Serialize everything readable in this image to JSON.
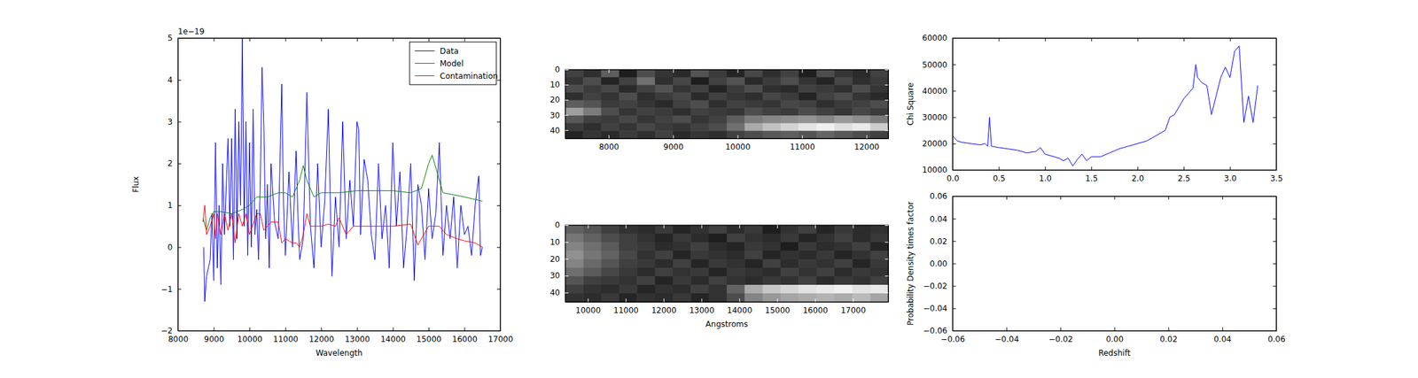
{
  "chart_data": [
    {
      "type": "line",
      "xlabel": "Wavelength",
      "ylabel": "Flux",
      "y_offset_label": "1e−19",
      "legend": "upper right",
      "xlim": [
        8000,
        17000
      ],
      "ylim": [
        -2,
        5
      ],
      "xticks": [
        8000,
        9000,
        10000,
        11000,
        12000,
        13000,
        14000,
        15000,
        16000,
        17000
      ],
      "yticks": [
        {
          "value": -2,
          "label": "−2"
        },
        {
          "value": -1,
          "label": "−1"
        },
        0,
        1,
        2,
        3,
        4,
        5
      ],
      "series": [
        {
          "name": "Data",
          "color": "#0000ff",
          "x": [
            8720,
            8750,
            8800,
            8900,
            8950,
            9000,
            9050,
            9100,
            9150,
            9200,
            9250,
            9300,
            9400,
            9450,
            9500,
            9550,
            9600,
            9650,
            9700,
            9750,
            9800,
            9850,
            9900,
            9950,
            10000,
            10050,
            10100,
            10150,
            10200,
            10250,
            10300,
            10350,
            10400,
            10450,
            10500,
            10550,
            10600,
            10700,
            10800,
            10900,
            10950,
            11000,
            11100,
            11200,
            11300,
            11350,
            11400,
            11500,
            11600,
            11700,
            11800,
            11900,
            12000,
            12100,
            12200,
            12300,
            12400,
            12500,
            12600,
            12700,
            12800,
            12900,
            13000,
            13050,
            13100,
            13200,
            13300,
            13400,
            13500,
            13600,
            13700,
            13800,
            13900,
            14000,
            14100,
            14200,
            14300,
            14400,
            14500,
            14600,
            14700,
            14800,
            14900,
            15000,
            15100,
            15200,
            15300,
            15400,
            15500,
            15600,
            15700,
            15800,
            15900,
            16000,
            16100,
            16200,
            16300,
            16400,
            16450,
            16500
          ],
          "values": [
            0.0,
            -1.3,
            -0.7,
            -0.3,
            0.8,
            -0.8,
            2.5,
            -0.5,
            1.0,
            -0.9,
            2.0,
            0.3,
            2.6,
            0.5,
            2.6,
            -0.3,
            3.3,
            0.2,
            3.0,
            1.0,
            5.0,
            0.5,
            3.0,
            -0.2,
            2.5,
            0.0,
            3.3,
            0.3,
            0.9,
            -0.3,
            1.5,
            4.3,
            2.9,
            0.2,
            1.5,
            -0.5,
            2.0,
            0.6,
            0.2,
            3.9,
            1.0,
            -0.2,
            1.8,
            0.0,
            2.3,
            0.8,
            -0.3,
            0.2,
            3.7,
            0.5,
            -0.5,
            2.0,
            0.0,
            1.1,
            3.3,
            -0.7,
            1.2,
            0.0,
            3.0,
            0.2,
            1.6,
            0.5,
            3.0,
            2.8,
            0.3,
            2.1,
            1.6,
            0.3,
            -0.3,
            2.0,
            0.2,
            1.0,
            -0.5,
            2.5,
            0.5,
            1.8,
            -0.5,
            0.5,
            2.0,
            -0.8,
            1.5,
            1.0,
            -0.3,
            1.4,
            0.2,
            0.8,
            2.5,
            -0.2,
            1.0,
            0.2,
            1.2,
            -0.5,
            1.0,
            0.3,
            0.5,
            -0.2,
            1.0,
            1.7,
            -0.2,
            0.0
          ]
        },
        {
          "name": "Model",
          "color": "#008000",
          "x": [
            8700,
            8800,
            8900,
            9000,
            9200,
            9500,
            9800,
            10000,
            10100,
            10200,
            10500,
            10800,
            11000,
            11200,
            11400,
            11500,
            11600,
            11800,
            12000,
            12500,
            13000,
            13500,
            14000,
            14500,
            14800,
            15000,
            15100,
            15200,
            15400,
            15700,
            16000,
            16500
          ],
          "values": [
            0.7,
            0.4,
            0.7,
            0.85,
            0.85,
            0.8,
            0.9,
            1.0,
            1.1,
            1.2,
            1.2,
            1.3,
            1.3,
            1.2,
            1.6,
            1.95,
            1.6,
            1.2,
            1.3,
            1.3,
            1.35,
            1.35,
            1.35,
            1.3,
            1.4,
            2.0,
            2.2,
            1.9,
            1.3,
            1.25,
            1.2,
            1.1
          ]
        },
        {
          "name": "Contamination",
          "color": "#ff0000",
          "x": [
            8700,
            8750,
            8800,
            8900,
            9000,
            9050,
            9100,
            9200,
            9300,
            9400,
            9500,
            9600,
            9700,
            9800,
            9900,
            10000,
            10200,
            10300,
            10400,
            10600,
            10800,
            10900,
            11000,
            11200,
            11300,
            11400,
            11500,
            11600,
            11700,
            12000,
            12200,
            12400,
            12500,
            12700,
            12900,
            13100,
            13500,
            14000,
            14500,
            14700,
            15000,
            15300,
            15500,
            15800,
            16000,
            16300,
            16500
          ],
          "values": [
            0.6,
            1.0,
            0.3,
            0.5,
            0.8,
            0.2,
            0.8,
            0.3,
            0.8,
            0.4,
            0.8,
            0.1,
            0.8,
            0.5,
            0.8,
            0.3,
            0.8,
            0.8,
            0.4,
            0.6,
            0.6,
            0.1,
            0.2,
            0.1,
            0.1,
            0.0,
            0.3,
            0.8,
            0.5,
            0.5,
            0.55,
            0.5,
            0.7,
            0.3,
            0.5,
            0.5,
            0.5,
            0.5,
            0.55,
            0.05,
            0.5,
            0.5,
            0.3,
            0.2,
            0.15,
            0.1,
            0.0
          ]
        }
      ]
    },
    {
      "type": "heatmap",
      "xlim": [
        7326,
        12337
      ],
      "ylim": [
        0,
        45.5
      ],
      "xticks": [
        8000,
        9000,
        10000,
        11000,
        12000
      ],
      "yticks": [
        0,
        10,
        20,
        30,
        40
      ],
      "z": [
        [
          0.5,
          0.47,
          0.55,
          0.44,
          0.52,
          0.48,
          0.46,
          0.53,
          0.49,
          0.45,
          0.51,
          0.47,
          0.5,
          0.44,
          0.52,
          0.48,
          0.46,
          0.5
        ],
        [
          0.48,
          0.52,
          0.45,
          0.5,
          0.58,
          0.47,
          0.51,
          0.44,
          0.5,
          0.53,
          0.46,
          0.49,
          0.52,
          0.48,
          0.45,
          0.51,
          0.47,
          0.49
        ],
        [
          0.52,
          0.49,
          0.51,
          0.46,
          0.5,
          0.53,
          0.48,
          0.5,
          0.45,
          0.49,
          0.52,
          0.47,
          0.46,
          0.5,
          0.49,
          0.47,
          0.52,
          0.48
        ],
        [
          0.47,
          0.5,
          0.48,
          0.52,
          0.47,
          0.49,
          0.51,
          0.46,
          0.5,
          0.48,
          0.47,
          0.51,
          0.49,
          0.45,
          0.5,
          0.52,
          0.48,
          0.46
        ],
        [
          0.55,
          0.53,
          0.49,
          0.5,
          0.48,
          0.46,
          0.5,
          0.52,
          0.47,
          0.5,
          0.49,
          0.48,
          0.51,
          0.5,
          0.47,
          0.49,
          0.5,
          0.52
        ],
        [
          0.66,
          0.6,
          0.52,
          0.48,
          0.5,
          0.49,
          0.47,
          0.5,
          0.49,
          0.48,
          0.52,
          0.5,
          0.49,
          0.52,
          0.5,
          0.48,
          0.51,
          0.49
        ],
        [
          0.54,
          0.5,
          0.49,
          0.51,
          0.48,
          0.5,
          0.52,
          0.48,
          0.5,
          0.55,
          0.6,
          0.62,
          0.63,
          0.64,
          0.62,
          0.65,
          0.63,
          0.6
        ],
        [
          0.49,
          0.47,
          0.5,
          0.48,
          0.51,
          0.49,
          0.48,
          0.5,
          0.52,
          0.58,
          0.68,
          0.72,
          0.75,
          0.78,
          0.8,
          0.77,
          0.79,
          0.74
        ],
        [
          0.45,
          0.48,
          0.46,
          0.49,
          0.47,
          0.5,
          0.46,
          0.48,
          0.47,
          0.5,
          0.52,
          0.54,
          0.55,
          0.53,
          0.56,
          0.54,
          0.52,
          0.5
        ]
      ]
    },
    {
      "type": "heatmap",
      "xlabel": "Angstroms",
      "xlim": [
        9403,
        17932
      ],
      "ylim": [
        0,
        45.5
      ],
      "xticks": [
        10000,
        11000,
        12000,
        13000,
        14000,
        15000,
        16000,
        17000
      ],
      "yticks": [
        0,
        10,
        20,
        30,
        40
      ],
      "z": [
        [
          0.55,
          0.53,
          0.5,
          0.48,
          0.47,
          0.49,
          0.46,
          0.48,
          0.5,
          0.47,
          0.49,
          0.45,
          0.48,
          0.5,
          0.46,
          0.49,
          0.47,
          0.48
        ],
        [
          0.58,
          0.55,
          0.52,
          0.5,
          0.48,
          0.46,
          0.49,
          0.47,
          0.45,
          0.5,
          0.48,
          0.47,
          0.49,
          0.46,
          0.48,
          0.5,
          0.47,
          0.49
        ],
        [
          0.6,
          0.57,
          0.54,
          0.5,
          0.49,
          0.47,
          0.48,
          0.5,
          0.47,
          0.46,
          0.49,
          0.48,
          0.45,
          0.49,
          0.47,
          0.48,
          0.5,
          0.46
        ],
        [
          0.62,
          0.58,
          0.55,
          0.51,
          0.48,
          0.5,
          0.46,
          0.49,
          0.48,
          0.47,
          0.5,
          0.46,
          0.48,
          0.47,
          0.49,
          0.46,
          0.48,
          0.5
        ],
        [
          0.6,
          0.56,
          0.53,
          0.5,
          0.49,
          0.47,
          0.5,
          0.46,
          0.49,
          0.48,
          0.46,
          0.5,
          0.47,
          0.49,
          0.48,
          0.5,
          0.46,
          0.49
        ],
        [
          0.57,
          0.54,
          0.51,
          0.49,
          0.47,
          0.5,
          0.48,
          0.49,
          0.46,
          0.49,
          0.48,
          0.47,
          0.5,
          0.48,
          0.5,
          0.47,
          0.49,
          0.48
        ],
        [
          0.53,
          0.5,
          0.49,
          0.48,
          0.5,
          0.46,
          0.49,
          0.47,
          0.5,
          0.48,
          0.47,
          0.49,
          0.48,
          0.5,
          0.47,
          0.49,
          0.48,
          0.5
        ],
        [
          0.5,
          0.48,
          0.47,
          0.49,
          0.46,
          0.48,
          0.47,
          0.5,
          0.48,
          0.55,
          0.66,
          0.7,
          0.72,
          0.74,
          0.75,
          0.76,
          0.74,
          0.75
        ],
        [
          0.48,
          0.47,
          0.49,
          0.46,
          0.48,
          0.47,
          0.49,
          0.46,
          0.48,
          0.52,
          0.6,
          0.63,
          0.65,
          0.66,
          0.67,
          0.66,
          0.68,
          0.65
        ]
      ]
    },
    {
      "type": "line",
      "ylabel": "Chi Square",
      "xlim": [
        0,
        3.5
      ],
      "ylim": [
        10000,
        60000
      ],
      "xticks": [
        {
          "value": 0,
          "label": "0.0"
        },
        {
          "value": 0.5,
          "label": "0.5"
        },
        {
          "value": 1,
          "label": "1.0"
        },
        {
          "value": 1.5,
          "label": "1.5"
        },
        {
          "value": 2,
          "label": "2.0"
        },
        {
          "value": 2.5,
          "label": "2.5"
        },
        {
          "value": 3,
          "label": "3.0"
        },
        {
          "value": 3.5,
          "label": "3.5"
        }
      ],
      "yticks": [
        10000,
        20000,
        30000,
        40000,
        50000,
        60000
      ],
      "series": [
        {
          "color": "#0000ff",
          "x": [
            0.0,
            0.05,
            0.1,
            0.2,
            0.3,
            0.35,
            0.38,
            0.4,
            0.42,
            0.5,
            0.6,
            0.7,
            0.8,
            0.9,
            0.95,
            1.0,
            1.1,
            1.15,
            1.2,
            1.25,
            1.3,
            1.35,
            1.4,
            1.45,
            1.5,
            1.6,
            1.7,
            1.8,
            1.9,
            2.0,
            2.1,
            2.2,
            2.3,
            2.35,
            2.4,
            2.5,
            2.6,
            2.63,
            2.65,
            2.7,
            2.75,
            2.8,
            2.85,
            2.9,
            2.95,
            3.0,
            3.05,
            3.1,
            3.15,
            3.2,
            3.25,
            3.3
          ],
          "values": [
            23000,
            21000,
            20500,
            20000,
            19500,
            20000,
            19000,
            30000,
            19000,
            18500,
            18000,
            17500,
            16500,
            17000,
            18500,
            16000,
            15000,
            14500,
            13500,
            14500,
            11500,
            14000,
            16000,
            13500,
            15000,
            15000,
            16500,
            18000,
            19000,
            20000,
            21000,
            23000,
            25000,
            30000,
            31000,
            37000,
            41000,
            50000,
            45000,
            43000,
            42000,
            31000,
            38000,
            45000,
            49000,
            45000,
            55000,
            57000,
            28000,
            38000,
            28000,
            42000
          ]
        }
      ]
    },
    {
      "type": "line",
      "xlabel": "Redshift",
      "ylabel": "Probability Density times factor",
      "xlim": [
        -0.06,
        0.06
      ],
      "ylim": [
        -0.06,
        0.06
      ],
      "xticks": [
        {
          "value": -0.06,
          "label": "−0.06"
        },
        {
          "value": -0.04,
          "label": "−0.04"
        },
        {
          "value": -0.02,
          "label": "−0.02"
        },
        {
          "value": 0,
          "label": "0.00"
        },
        {
          "value": 0.02,
          "label": "0.02"
        },
        {
          "value": 0.04,
          "label": "0.04"
        },
        {
          "value": 0.06,
          "label": "0.06"
        }
      ],
      "yticks": [
        {
          "value": -0.06,
          "label": "−0.06"
        },
        {
          "value": -0.04,
          "label": "−0.04"
        },
        {
          "value": -0.02,
          "label": "−0.02"
        },
        {
          "value": 0,
          "label": "0.00"
        },
        {
          "value": 0.02,
          "label": "0.02"
        },
        {
          "value": 0.04,
          "label": "0.04"
        },
        {
          "value": 0.06,
          "label": "0.06"
        }
      ],
      "series": []
    }
  ]
}
